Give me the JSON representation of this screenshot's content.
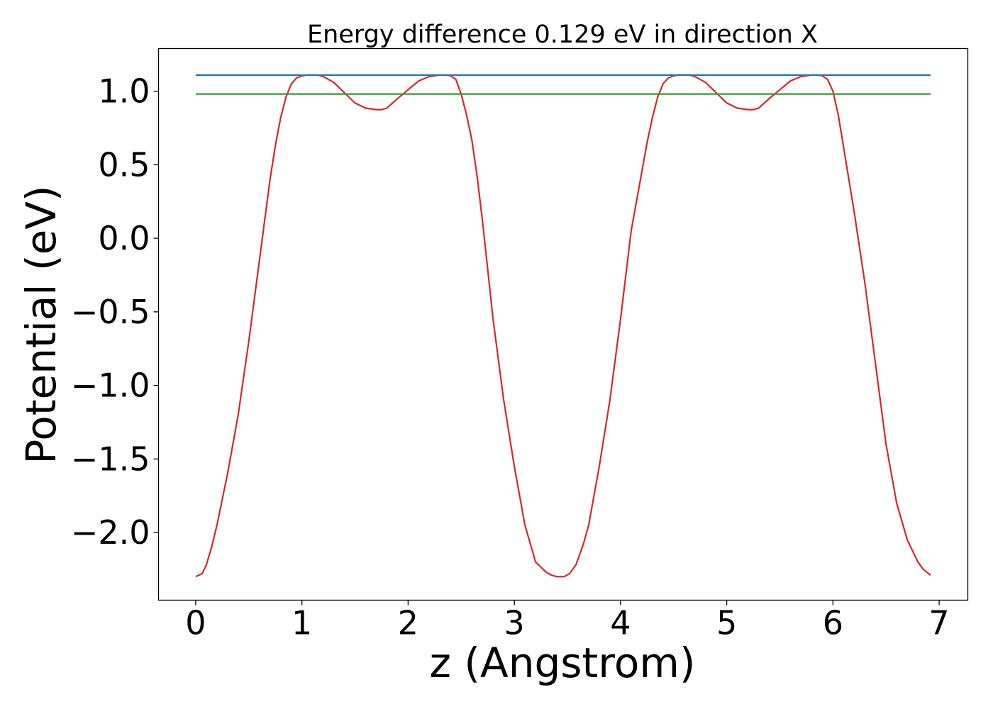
{
  "chart_data": {
    "type": "line",
    "title": "Energy difference 0.129 eV in direction X",
    "xlabel": "z (Angstrom)",
    "ylabel": "Potential (eV)",
    "xlim": [
      -0.35,
      7.27
    ],
    "ylim": [
      -2.46,
      1.29
    ],
    "x_ticks": [
      0,
      1,
      2,
      3,
      4,
      5,
      6,
      7
    ],
    "x_tick_labels": [
      "0",
      "1",
      "2",
      "3",
      "4",
      "5",
      "6",
      "7"
    ],
    "y_ticks": [
      1.0,
      0.5,
      0.0,
      -0.5,
      -1.0,
      -1.5,
      -2.0
    ],
    "y_tick_labels": [
      "1.0",
      "0.5",
      "0.0",
      "−0.5",
      "−1.0",
      "−1.5",
      "−2.0"
    ],
    "grid": false,
    "series": [
      {
        "color": "#d62728",
        "x": [
          0.0,
          0.06,
          0.1,
          0.15,
          0.2,
          0.3,
          0.4,
          0.5,
          0.6,
          0.7,
          0.75,
          0.8,
          0.85,
          0.9,
          0.95,
          1.0,
          1.05,
          1.1,
          1.15,
          1.2,
          1.3,
          1.4,
          1.5,
          1.6,
          1.7,
          1.75,
          1.8,
          1.9,
          2.0,
          2.1,
          2.2,
          2.3,
          2.35,
          2.4,
          2.45,
          2.5,
          2.55,
          2.6,
          2.65,
          2.7,
          2.8,
          2.9,
          3.0,
          3.1,
          3.2,
          3.3,
          3.35,
          3.4,
          3.47,
          3.52,
          3.58,
          3.65,
          3.7,
          3.8,
          3.9,
          4.0,
          4.1,
          4.2,
          4.25,
          4.3,
          4.35,
          4.4,
          4.45,
          4.5,
          4.55,
          4.6,
          4.65,
          4.7,
          4.8,
          4.9,
          5.0,
          5.1,
          5.2,
          5.25,
          5.3,
          5.4,
          5.5,
          5.6,
          5.7,
          5.8,
          5.85,
          5.9,
          5.95,
          6.0,
          6.05,
          6.1,
          6.15,
          6.2,
          6.3,
          6.4,
          6.5,
          6.6,
          6.7,
          6.8,
          6.85,
          6.92
        ],
        "y": [
          -2.3,
          -2.28,
          -2.22,
          -2.1,
          -1.95,
          -1.6,
          -1.2,
          -0.7,
          -0.15,
          0.4,
          0.63,
          0.82,
          0.96,
          1.05,
          1.09,
          1.105,
          1.11,
          1.11,
          1.11,
          1.1,
          1.06,
          0.99,
          0.92,
          0.885,
          0.875,
          0.875,
          0.885,
          0.95,
          1.01,
          1.07,
          1.1,
          1.11,
          1.11,
          1.105,
          1.08,
          0.98,
          0.84,
          0.67,
          0.42,
          0.12,
          -0.55,
          -1.1,
          -1.55,
          -1.95,
          -2.2,
          -2.27,
          -2.29,
          -2.3,
          -2.3,
          -2.28,
          -2.22,
          -2.08,
          -1.95,
          -1.55,
          -1.1,
          -0.55,
          0.05,
          0.45,
          0.65,
          0.82,
          0.96,
          1.05,
          1.09,
          1.105,
          1.11,
          1.11,
          1.11,
          1.1,
          1.06,
          0.99,
          0.92,
          0.885,
          0.875,
          0.875,
          0.885,
          0.95,
          1.01,
          1.07,
          1.1,
          1.11,
          1.11,
          1.105,
          1.08,
          1.0,
          0.84,
          0.62,
          0.4,
          0.18,
          -0.3,
          -0.85,
          -1.4,
          -1.8,
          -2.05,
          -2.2,
          -2.25,
          -2.29
        ]
      },
      {
        "color": "#1f77b4",
        "x": [
          0.0,
          6.92
        ],
        "y": [
          1.11,
          1.11
        ]
      },
      {
        "color": "#2ca02c",
        "x": [
          0.0,
          6.92
        ],
        "y": [
          0.981,
          0.981
        ]
      }
    ]
  }
}
